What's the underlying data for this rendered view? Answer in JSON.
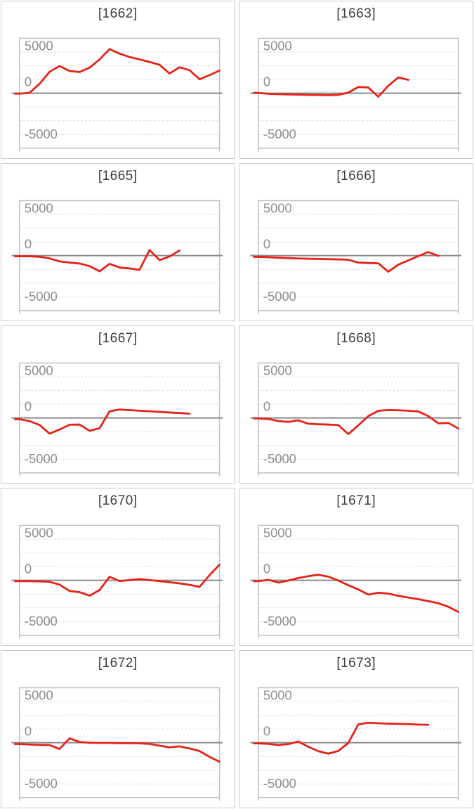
{
  "page": {
    "background": "#ffffff",
    "layout": "2x5 grid of machine payout line charts"
  },
  "style": {
    "series_color": "#e62117",
    "zero_line_color": "#8a8a8a",
    "gridline_color": "#d9d9d9",
    "plot_border_color": "#c0c0c0",
    "panel_border_color": "#cbcbcb",
    "axis_label_color": "#8f8f8f",
    "title_color": "#3d3d3d"
  },
  "axis": {
    "tick_labels": [
      "5000",
      "0",
      "-5000"
    ],
    "tick_values": [
      5000,
      0,
      -5000
    ]
  },
  "chart_data": [
    {
      "type": "line",
      "title": "[1662]",
      "ylim": [
        -6667,
        6667
      ],
      "gridline_step": 1667,
      "legend": "none",
      "values": [
        -50,
        50,
        1150,
        2600,
        3300,
        2700,
        2570,
        3100,
        4100,
        5350,
        4800,
        4400,
        4100,
        3800,
        3450,
        2400,
        3150,
        2800,
        1700,
        2200,
        2750
      ]
    },
    {
      "type": "line",
      "title": "[1663]",
      "ylim": [
        -6667,
        6667
      ],
      "gridline_step": 1667,
      "legend": "none",
      "values": [
        50,
        -60,
        -110,
        -140,
        -170,
        -200,
        -210,
        -230,
        -200,
        80,
        760,
        700,
        -420,
        900,
        1920,
        1630
      ]
    },
    {
      "type": "line",
      "title": "[1665]",
      "ylim": [
        -6667,
        6667
      ],
      "gridline_step": 1667,
      "legend": "none",
      "values": [
        -80,
        -80,
        -140,
        -340,
        -700,
        -850,
        -960,
        -1270,
        -1900,
        -1000,
        -1440,
        -1550,
        -1720,
        680,
        -540,
        -110,
        620
      ]
    },
    {
      "type": "line",
      "title": "[1666]",
      "ylim": [
        -6667,
        6667
      ],
      "gridline_step": 1667,
      "legend": "none",
      "values": [
        -150,
        -200,
        -250,
        -300,
        -350,
        -380,
        -400,
        -430,
        -460,
        -500,
        -850,
        -900,
        -930,
        -1950,
        -1100,
        -580,
        -60,
        430,
        -30
      ]
    },
    {
      "type": "line",
      "title": "[1667]",
      "ylim": [
        -6667,
        6667
      ],
      "gridline_step": 1667,
      "legend": "none",
      "values": [
        -150,
        -380,
        -850,
        -1900,
        -1400,
        -820,
        -800,
        -1550,
        -1250,
        800,
        1030,
        950,
        880,
        810,
        740,
        660,
        600,
        520
      ]
    },
    {
      "type": "line",
      "title": "[1668]",
      "ylim": [
        -6667,
        6667
      ],
      "gridline_step": 1667,
      "legend": "none",
      "values": [
        -50,
        -120,
        -370,
        -480,
        -280,
        -700,
        -760,
        -800,
        -870,
        -1950,
        -900,
        230,
        870,
        960,
        930,
        880,
        790,
        230,
        -650,
        -600,
        -1270
      ]
    },
    {
      "type": "line",
      "title": "[1670]",
      "ylim": [
        -6667,
        6667
      ],
      "gridline_step": 1667,
      "legend": "none",
      "values": [
        -100,
        -100,
        -120,
        -180,
        -520,
        -1290,
        -1430,
        -1860,
        -1180,
        430,
        -90,
        30,
        150,
        30,
        -90,
        -230,
        -370,
        -540,
        -800,
        620,
        1900
      ]
    },
    {
      "type": "line",
      "title": "[1671]",
      "ylim": [
        -6667,
        6667
      ],
      "gridline_step": 1667,
      "legend": "none",
      "values": [
        -100,
        60,
        -270,
        -30,
        280,
        510,
        680,
        450,
        -30,
        -600,
        -1100,
        -1730,
        -1500,
        -1610,
        -1870,
        -2090,
        -2290,
        -2520,
        -2770,
        -3200,
        -3820
      ]
    },
    {
      "type": "line",
      "title": "[1672]",
      "ylim": [
        -6667,
        6667
      ],
      "gridline_step": 1667,
      "legend": "none",
      "values": [
        -170,
        -220,
        -260,
        -290,
        -760,
        530,
        90,
        -10,
        -30,
        -30,
        -60,
        -60,
        -80,
        -140,
        -370,
        -560,
        -450,
        -700,
        -1010,
        -1720,
        -2310
      ]
    },
    {
      "type": "line",
      "title": "[1673]",
      "ylim": [
        -6667,
        6667
      ],
      "gridline_step": 1667,
      "legend": "none",
      "values": [
        -80,
        -140,
        -280,
        -170,
        140,
        -500,
        -1030,
        -1330,
        -1000,
        -30,
        2220,
        2420,
        2360,
        2310,
        2280,
        2250,
        2200,
        2170
      ]
    }
  ]
}
